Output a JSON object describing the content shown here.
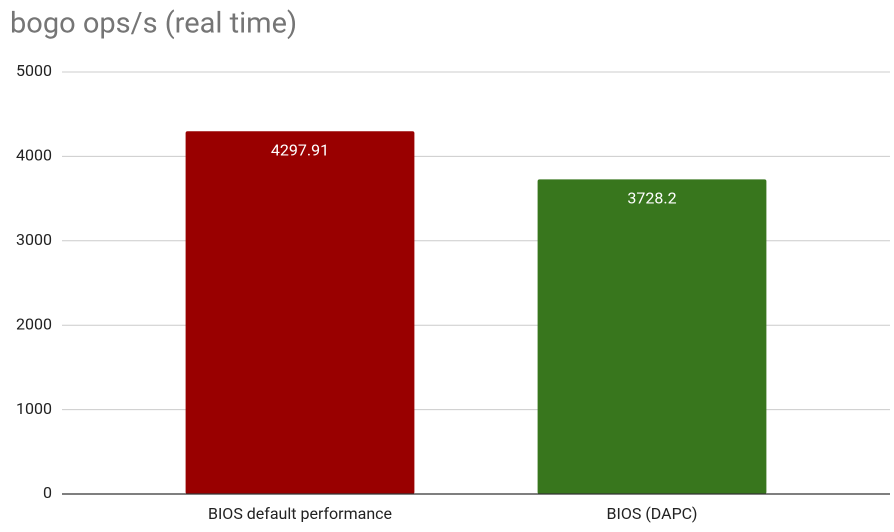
{
  "chart_data": {
    "type": "bar",
    "title": "bogo ops/s (real time)",
    "categories": [
      "BIOS default performance",
      "BIOS (DAPC)"
    ],
    "values": [
      4297.91,
      3728.2
    ],
    "colors": [
      "#990000",
      "#38761d"
    ],
    "ylim": [
      0,
      5000
    ],
    "yticks": [
      0,
      1000,
      2000,
      3000,
      4000,
      5000
    ],
    "grid": true
  }
}
